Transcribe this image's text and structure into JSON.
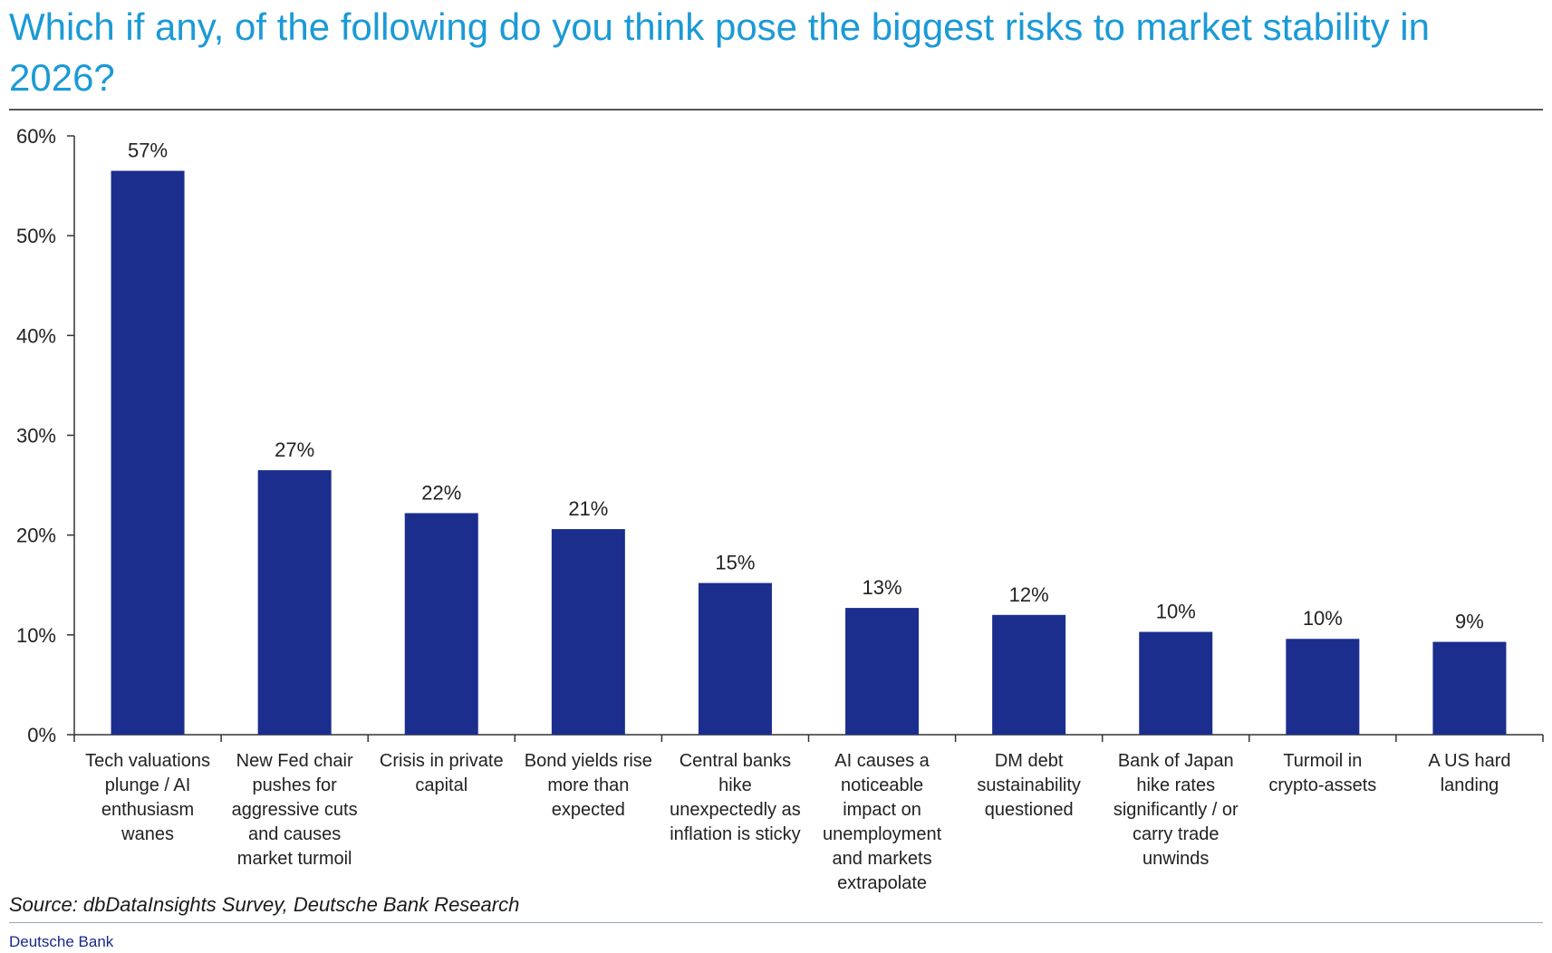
{
  "title": "Which if any, of the following do you think pose the biggest risks to market stability in 2026?",
  "source": "Source: dbDataInsights Survey, Deutsche Bank Research",
  "brand": "Deutsche Bank",
  "colors": {
    "title": "#1b9ad6",
    "bar": "#1b2e8e",
    "axis": "#333333"
  },
  "chart_data": {
    "type": "bar",
    "title": "",
    "xlabel": "",
    "ylabel": "",
    "ylim": [
      0,
      60
    ],
    "yticks": [
      0,
      10,
      20,
      30,
      40,
      50,
      60
    ],
    "ytick_labels": [
      "0%",
      "10%",
      "20%",
      "30%",
      "40%",
      "50%",
      "60%"
    ],
    "grid": false,
    "categories": [
      [
        "Tech valuations",
        "plunge / AI",
        "enthusiasm",
        "wanes"
      ],
      [
        "New Fed chair",
        "pushes for",
        "aggressive cuts",
        "and causes",
        "market turmoil"
      ],
      [
        "Crisis in private",
        "capital"
      ],
      [
        "Bond yields rise",
        "more than",
        "expected"
      ],
      [
        "Central banks",
        "hike",
        "unexpectedly as",
        "inflation is sticky"
      ],
      [
        "AI causes a",
        "noticeable",
        "impact on",
        "unemployment",
        "and markets",
        "extrapolate"
      ],
      [
        "DM debt",
        "sustainability",
        "questioned"
      ],
      [
        "Bank of Japan",
        "hike rates",
        "significantly / or",
        "carry trade",
        "unwinds"
      ],
      [
        "Turmoil in",
        "crypto-assets"
      ],
      [
        "A US hard",
        "landing"
      ]
    ],
    "values": [
      56.5,
      26.5,
      22.2,
      20.6,
      15.2,
      12.7,
      12.0,
      10.3,
      9.6,
      9.3
    ],
    "data_labels": [
      "57%",
      "27%",
      "22%",
      "21%",
      "15%",
      "13%",
      "12%",
      "10%",
      "10%",
      "9%"
    ]
  }
}
